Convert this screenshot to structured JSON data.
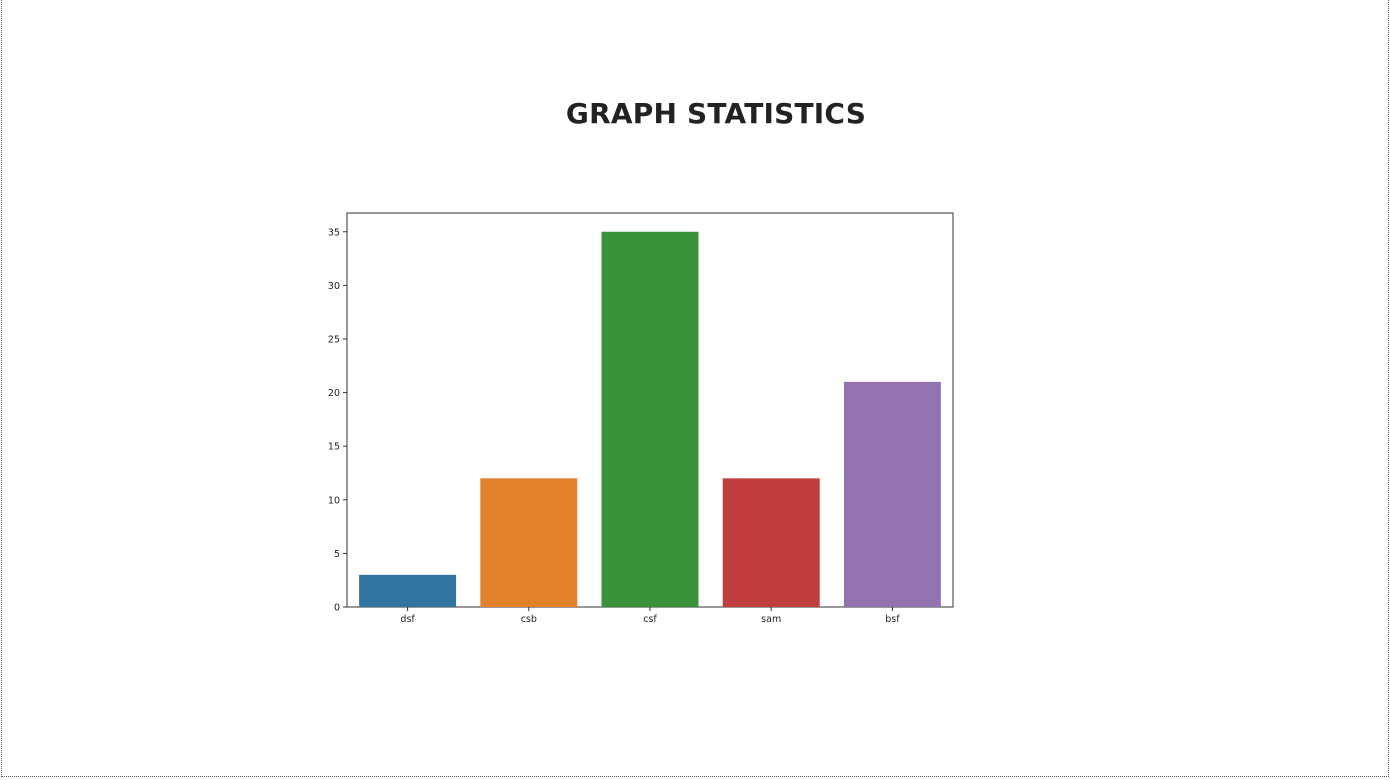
{
  "page": {
    "title": "GRAPH STATISTICS"
  },
  "chart_data": {
    "type": "bar",
    "title": "",
    "xlabel": "",
    "ylabel": "",
    "categories": [
      "dsf",
      "csb",
      "csf",
      "sam",
      "bsf"
    ],
    "values": [
      3,
      12,
      35,
      12,
      21
    ],
    "colors": [
      "#3274a1",
      "#e1812c",
      "#3a923a",
      "#c03d3e",
      "#9372b2"
    ],
    "ylim": [
      0,
      36.75
    ],
    "yticks": [
      0,
      5,
      10,
      15,
      20,
      25,
      30,
      35
    ],
    "grid": false,
    "legend": "none"
  }
}
